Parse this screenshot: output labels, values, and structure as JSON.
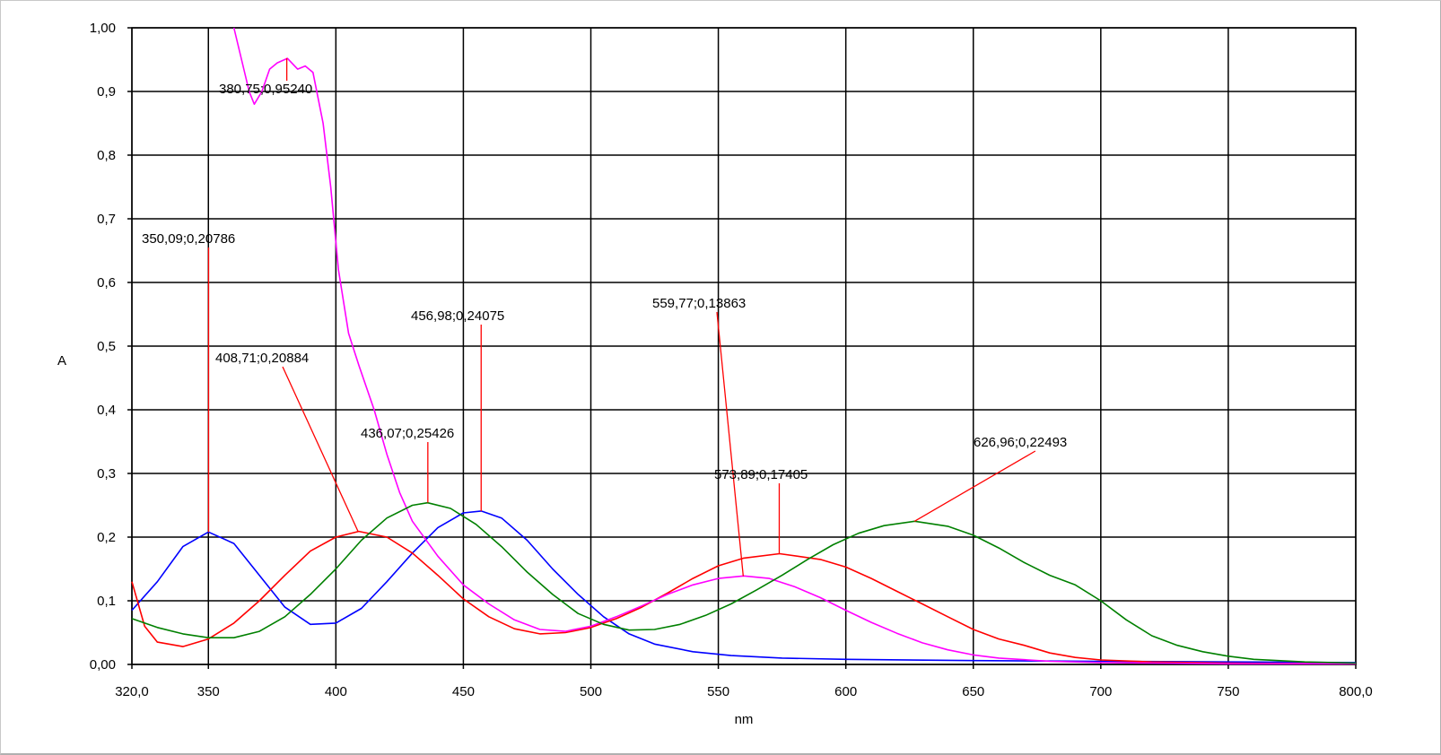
{
  "chart_data": {
    "type": "line",
    "xlabel": "nm",
    "ylabel": "A",
    "xlim": [
      320,
      800
    ],
    "ylim": [
      0,
      1
    ],
    "grid": true,
    "x_ticks": [
      320,
      350,
      400,
      450,
      500,
      550,
      600,
      650,
      700,
      750,
      800
    ],
    "x_tick_labels": [
      "320,0",
      "350",
      "400",
      "450",
      "500",
      "550",
      "600",
      "650",
      "700",
      "750",
      "800,0"
    ],
    "y_ticks": [
      0,
      0.1,
      0.2,
      0.3,
      0.4,
      0.5,
      0.6,
      0.7,
      0.8,
      0.9,
      1.0
    ],
    "y_tick_labels": [
      "0,00",
      "0,1",
      "0,2",
      "0,3",
      "0,4",
      "0,5",
      "0,6",
      "0,7",
      "0,8",
      "0,9",
      "1,00"
    ],
    "series": [
      {
        "color": "#0000ff",
        "points": [
          [
            320,
            0.085
          ],
          [
            330,
            0.13
          ],
          [
            340,
            0.185
          ],
          [
            350,
            0.208
          ],
          [
            360,
            0.19
          ],
          [
            370,
            0.14
          ],
          [
            380,
            0.09
          ],
          [
            390,
            0.063
          ],
          [
            400,
            0.065
          ],
          [
            410,
            0.088
          ],
          [
            420,
            0.13
          ],
          [
            430,
            0.175
          ],
          [
            440,
            0.215
          ],
          [
            450,
            0.238
          ],
          [
            457,
            0.241
          ],
          [
            465,
            0.23
          ],
          [
            475,
            0.195
          ],
          [
            485,
            0.15
          ],
          [
            495,
            0.11
          ],
          [
            505,
            0.075
          ],
          [
            515,
            0.048
          ],
          [
            525,
            0.032
          ],
          [
            540,
            0.02
          ],
          [
            555,
            0.014
          ],
          [
            575,
            0.01
          ],
          [
            600,
            0.008
          ],
          [
            650,
            0.006
          ],
          [
            700,
            0.005
          ],
          [
            750,
            0.004
          ],
          [
            800,
            0.003
          ]
        ]
      },
      {
        "color": "#ff0000",
        "points": [
          [
            320,
            0.13
          ],
          [
            325,
            0.06
          ],
          [
            330,
            0.035
          ],
          [
            340,
            0.028
          ],
          [
            350,
            0.04
          ],
          [
            360,
            0.065
          ],
          [
            370,
            0.1
          ],
          [
            380,
            0.14
          ],
          [
            390,
            0.178
          ],
          [
            400,
            0.2
          ],
          [
            409,
            0.209
          ],
          [
            420,
            0.2
          ],
          [
            430,
            0.175
          ],
          [
            440,
            0.14
          ],
          [
            450,
            0.103
          ],
          [
            460,
            0.075
          ],
          [
            470,
            0.056
          ],
          [
            480,
            0.048
          ],
          [
            490,
            0.05
          ],
          [
            500,
            0.058
          ],
          [
            510,
            0.072
          ],
          [
            520,
            0.09
          ],
          [
            530,
            0.112
          ],
          [
            540,
            0.135
          ],
          [
            550,
            0.155
          ],
          [
            560,
            0.167
          ],
          [
            574,
            0.174
          ],
          [
            590,
            0.165
          ],
          [
            600,
            0.153
          ],
          [
            610,
            0.135
          ],
          [
            620,
            0.115
          ],
          [
            630,
            0.095
          ],
          [
            640,
            0.075
          ],
          [
            650,
            0.055
          ],
          [
            660,
            0.04
          ],
          [
            670,
            0.03
          ],
          [
            680,
            0.018
          ],
          [
            690,
            0.011
          ],
          [
            700,
            0.007
          ],
          [
            720,
            0.004
          ],
          [
            750,
            0.002
          ],
          [
            800,
            0.001
          ]
        ]
      },
      {
        "color": "#ff00ff",
        "points": [
          [
            360,
            1.0
          ],
          [
            363,
            0.95
          ],
          [
            366,
            0.9
          ],
          [
            368,
            0.88
          ],
          [
            371,
            0.9
          ],
          [
            374,
            0.935
          ],
          [
            377,
            0.945
          ],
          [
            381,
            0.952
          ],
          [
            385,
            0.935
          ],
          [
            388,
            0.94
          ],
          [
            391,
            0.93
          ],
          [
            395,
            0.85
          ],
          [
            398,
            0.75
          ],
          [
            401,
            0.62
          ],
          [
            405,
            0.52
          ],
          [
            409,
            0.47
          ],
          [
            415,
            0.4
          ],
          [
            420,
            0.33
          ],
          [
            425,
            0.27
          ],
          [
            430,
            0.225
          ],
          [
            440,
            0.17
          ],
          [
            450,
            0.125
          ],
          [
            460,
            0.095
          ],
          [
            470,
            0.07
          ],
          [
            480,
            0.055
          ],
          [
            490,
            0.052
          ],
          [
            500,
            0.06
          ],
          [
            510,
            0.075
          ],
          [
            520,
            0.092
          ],
          [
            530,
            0.11
          ],
          [
            540,
            0.125
          ],
          [
            550,
            0.135
          ],
          [
            560,
            0.139
          ],
          [
            570,
            0.135
          ],
          [
            580,
            0.122
          ],
          [
            590,
            0.105
          ],
          [
            600,
            0.085
          ],
          [
            610,
            0.066
          ],
          [
            620,
            0.049
          ],
          [
            630,
            0.034
          ],
          [
            640,
            0.023
          ],
          [
            650,
            0.015
          ],
          [
            660,
            0.01
          ],
          [
            680,
            0.005
          ],
          [
            700,
            0.003
          ],
          [
            750,
            0.001
          ],
          [
            800,
            0.001
          ]
        ]
      },
      {
        "color": "#008000",
        "points": [
          [
            320,
            0.072
          ],
          [
            330,
            0.058
          ],
          [
            340,
            0.048
          ],
          [
            350,
            0.042
          ],
          [
            360,
            0.042
          ],
          [
            370,
            0.052
          ],
          [
            380,
            0.075
          ],
          [
            390,
            0.11
          ],
          [
            400,
            0.15
          ],
          [
            410,
            0.195
          ],
          [
            420,
            0.23
          ],
          [
            430,
            0.25
          ],
          [
            436,
            0.254
          ],
          [
            445,
            0.245
          ],
          [
            455,
            0.22
          ],
          [
            465,
            0.185
          ],
          [
            475,
            0.145
          ],
          [
            485,
            0.11
          ],
          [
            495,
            0.08
          ],
          [
            505,
            0.063
          ],
          [
            515,
            0.054
          ],
          [
            525,
            0.055
          ],
          [
            535,
            0.063
          ],
          [
            545,
            0.077
          ],
          [
            555,
            0.095
          ],
          [
            565,
            0.117
          ],
          [
            575,
            0.14
          ],
          [
            585,
            0.165
          ],
          [
            595,
            0.188
          ],
          [
            605,
            0.206
          ],
          [
            615,
            0.218
          ],
          [
            627,
            0.225
          ],
          [
            640,
            0.217
          ],
          [
            650,
            0.203
          ],
          [
            660,
            0.183
          ],
          [
            670,
            0.16
          ],
          [
            680,
            0.14
          ],
          [
            690,
            0.125
          ],
          [
            700,
            0.1
          ],
          [
            710,
            0.07
          ],
          [
            720,
            0.045
          ],
          [
            730,
            0.03
          ],
          [
            740,
            0.02
          ],
          [
            750,
            0.013
          ],
          [
            760,
            0.008
          ],
          [
            780,
            0.004
          ],
          [
            800,
            0.002
          ]
        ]
      }
    ],
    "annotations": [
      {
        "text": "380,75;0,95240",
        "x": 380.75,
        "y": 0.9524
      },
      {
        "text": "350,09;0,20786",
        "x": 350.09,
        "y": 0.20786
      },
      {
        "text": "456,98;0,24075",
        "x": 456.98,
        "y": 0.24075
      },
      {
        "text": "408,71;0,20884",
        "x": 408.71,
        "y": 0.20884
      },
      {
        "text": "436,07;0,25426",
        "x": 436.07,
        "y": 0.25426
      },
      {
        "text": "559,77;0,13863",
        "x": 559.77,
        "y": 0.13863
      },
      {
        "text": "573,89;0,17405",
        "x": 573.89,
        "y": 0.17405
      },
      {
        "text": "626,96;0,22493",
        "x": 626.96,
        "y": 0.22493
      }
    ]
  }
}
